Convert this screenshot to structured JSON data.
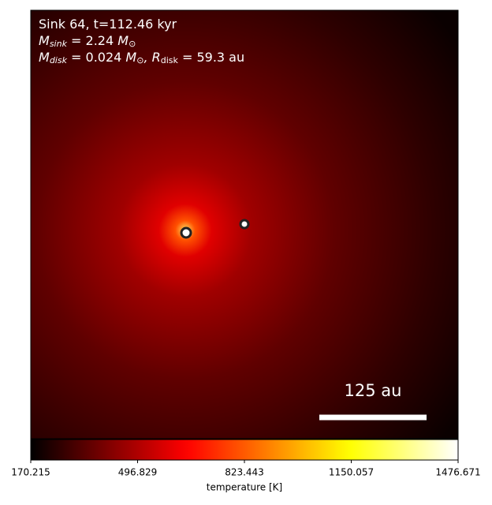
{
  "chart_data": {
    "type": "image",
    "annotations": [
      {
        "text": "Sink 64, t=112.46 kyr"
      },
      {
        "symbol": "M",
        "subscript": "sink",
        "text": " = 2.24 ",
        "unit": "M",
        "unit_subscript": "⊙"
      },
      {
        "symbol": "M",
        "subscript": "disk",
        "text": " = 0.024 ",
        "unit": "M",
        "unit_subscript": "⊙",
        "symbol2": ", R",
        "subscript2": "disk",
        "text2": " = 59.3 au"
      }
    ],
    "scale_bar_label": "125 au",
    "colorbar": {
      "label": "temperature [K]",
      "colormap": "hot",
      "clim": [
        170.215,
        1476.671
      ],
      "ticks": [
        170.215,
        496.829,
        823.443,
        1150.057,
        1476.671
      ]
    }
  }
}
